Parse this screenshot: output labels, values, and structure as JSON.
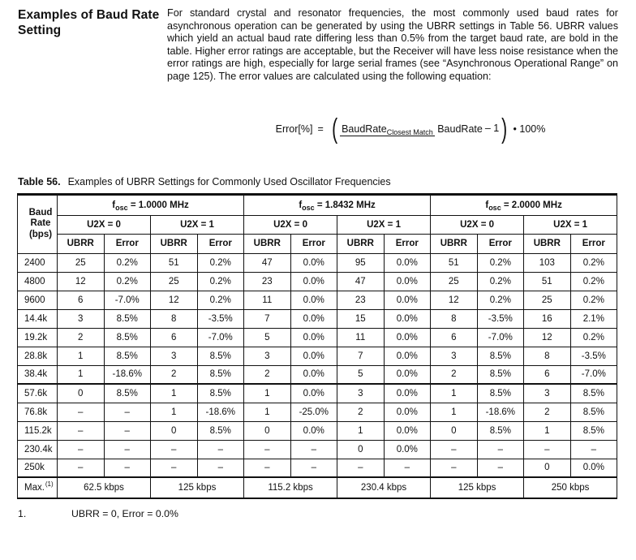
{
  "section": {
    "title_line1": "Examples of Baud Rate",
    "title_line2": "Setting",
    "body": "For standard crystal and resonator frequencies, the most commonly used baud rates for asynchronous operation can be generated by using the UBRR settings in Table 56. UBRR values which yield an actual baud rate differing less than 0.5% from the target baud rate, are bold in the table. Higher error ratings are acceptable, but the Receiver will have less noise resistance when the error ratings are high, especially for large serial frames (see “Asynchronous Operational Range” on page 125). The error values are calculated using the following equation:"
  },
  "equation": {
    "lhs": "Error[%]",
    "equals": "=",
    "open_paren": "(",
    "numerator": "BaudRate",
    "numerator_sub": "Closest Match",
    "denominator": "BaudRate",
    "minus_term": "– 1",
    "close_paren": ")",
    "tail": "• 100%"
  },
  "table": {
    "caption_label": "Table 56.",
    "caption_text": "Examples of UBRR Settings for Commonly Used Oscillator Frequencies",
    "baud_header": {
      "line1": "Baud",
      "line2": "Rate",
      "line3": "(bps)"
    },
    "groups": [
      {
        "f": "f",
        "f_sub": "osc",
        "f_rest": " = 1.0000 MHz"
      },
      {
        "f": "f",
        "f_sub": "osc",
        "f_rest": " = 1.8432 MHz"
      },
      {
        "f": "f",
        "f_sub": "osc",
        "f_rest": " = 2.0000 MHz"
      }
    ],
    "u2x_labels": [
      "U2X = 0",
      "U2X = 1",
      "U2X = 0",
      "U2X = 1",
      "U2X = 0",
      "U2X = 1"
    ],
    "col_labels": [
      "UBRR",
      "Error",
      "UBRR",
      "Error",
      "UBRR",
      "Error",
      "UBRR",
      "Error",
      "UBRR",
      "Error",
      "UBRR",
      "Error"
    ],
    "rows": [
      {
        "baud": "2400",
        "cells": [
          "25",
          "0.2%",
          "51",
          "0.2%",
          "47",
          "0.0%",
          "95",
          "0.0%",
          "51",
          "0.2%",
          "103",
          "0.2%"
        ]
      },
      {
        "baud": "4800",
        "cells": [
          "12",
          "0.2%",
          "25",
          "0.2%",
          "23",
          "0.0%",
          "47",
          "0.0%",
          "25",
          "0.2%",
          "51",
          "0.2%"
        ]
      },
      {
        "baud": "9600",
        "cells": [
          "6",
          "-7.0%",
          "12",
          "0.2%",
          "11",
          "0.0%",
          "23",
          "0.0%",
          "12",
          "0.2%",
          "25",
          "0.2%"
        ]
      },
      {
        "baud": "14.4k",
        "cells": [
          "3",
          "8.5%",
          "8",
          "-3.5%",
          "7",
          "0.0%",
          "15",
          "0.0%",
          "8",
          "-3.5%",
          "16",
          "2.1%"
        ]
      },
      {
        "baud": "19.2k",
        "cells": [
          "2",
          "8.5%",
          "6",
          "-7.0%",
          "5",
          "0.0%",
          "11",
          "0.0%",
          "6",
          "-7.0%",
          "12",
          "0.2%"
        ]
      },
      {
        "baud": "28.8k",
        "cells": [
          "1",
          "8.5%",
          "3",
          "8.5%",
          "3",
          "0.0%",
          "7",
          "0.0%",
          "3",
          "8.5%",
          "8",
          "-3.5%"
        ]
      },
      {
        "baud": "38.4k",
        "cells": [
          "1",
          "-18.6%",
          "2",
          "8.5%",
          "2",
          "0.0%",
          "5",
          "0.0%",
          "2",
          "8.5%",
          "6",
          "-7.0%"
        ]
      },
      {
        "baud": "57.6k",
        "cells": [
          "0",
          "8.5%",
          "1",
          "8.5%",
          "1",
          "0.0%",
          "3",
          "0.0%",
          "1",
          "8.5%",
          "3",
          "8.5%"
        ]
      },
      {
        "baud": "76.8k",
        "cells": [
          "–",
          "–",
          "1",
          "-18.6%",
          "1",
          "-25.0%",
          "2",
          "0.0%",
          "1",
          "-18.6%",
          "2",
          "8.5%"
        ]
      },
      {
        "baud": "115.2k",
        "cells": [
          "–",
          "–",
          "0",
          "8.5%",
          "0",
          "0.0%",
          "1",
          "0.0%",
          "0",
          "8.5%",
          "1",
          "8.5%"
        ]
      },
      {
        "baud": "230.4k",
        "cells": [
          "–",
          "–",
          "–",
          "–",
          "–",
          "–",
          "0",
          "0.0%",
          "–",
          "–",
          "–",
          "–"
        ]
      },
      {
        "baud": "250k",
        "cells": [
          "–",
          "–",
          "–",
          "–",
          "–",
          "–",
          "–",
          "–",
          "–",
          "–",
          "0",
          "0.0%"
        ]
      }
    ],
    "max_row": {
      "label": "Max.",
      "footnote_ref": "(1)",
      "values": [
        "62.5 kbps",
        "125 kbps",
        "115.2 kbps",
        "230.4 kbps",
        "125 kbps",
        "250 kbps"
      ]
    },
    "footnote": {
      "num": "1.",
      "text": "UBRR = 0, Error = 0.0%"
    }
  }
}
